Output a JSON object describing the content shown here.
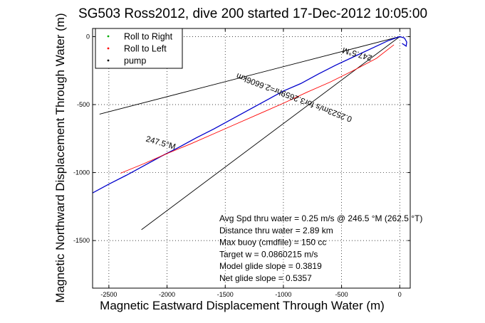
{
  "chart_data": {
    "type": "line",
    "title": "SG503 Ross2012, dive 200 started 17-Dec-2012 10:05:00",
    "xlabel": "Magnetic Eastward Displacement Through Water (m)",
    "ylabel": "Magnetic Northward Displacement Through Water (m)",
    "xlim": [
      -2640,
      90
    ],
    "ylim": [
      -1850,
      60
    ],
    "xticks": [
      -2500,
      -2000,
      -1500,
      -1000,
      -500,
      0
    ],
    "yticks": [
      -1500,
      -1000,
      -500,
      0
    ],
    "xtick_labels": [
      "-2500",
      "-2000",
      "-1500",
      "-1000",
      "-500",
      "0"
    ],
    "ytick_labels": [
      "-1500",
      "-1000",
      "-500",
      "0"
    ],
    "grid": true,
    "legend_position": "top-left",
    "legend": [
      {
        "label": "Roll to Right",
        "color": "#00aa00",
        "marker": "point"
      },
      {
        "label": "Roll to Left",
        "color": "#ff0000",
        "marker": "point"
      },
      {
        "label": "pump",
        "color": "#000000",
        "marker": "point"
      }
    ],
    "series": [
      {
        "color": "#0000cc",
        "x": [
          -2640,
          -2500,
          -2350,
          -2200,
          -2050,
          -1900,
          -1750,
          -1600,
          -1450,
          -1300,
          -1150,
          -1000,
          -850,
          -700,
          -550,
          -400,
          -250,
          -100,
          0,
          40,
          60,
          55,
          20
        ],
        "y": [
          -1150,
          -1085,
          -1020,
          -950,
          -880,
          -815,
          -745,
          -680,
          -610,
          -540,
          -470,
          -400,
          -345,
          -275,
          -210,
          -150,
          -90,
          -30,
          0,
          -10,
          -40,
          -70,
          -50
        ]
      },
      {
        "color": "#ff0000",
        "x": [
          -2400,
          -2200,
          -2000,
          -1800,
          -1600,
          -1400,
          -1200,
          -1000,
          -800,
          -600,
          -400,
          -200,
          -50
        ],
        "y": [
          -1005,
          -935,
          -860,
          -790,
          -715,
          -640,
          -565,
          -490,
          -410,
          -335,
          -250,
          -160,
          -60
        ]
      }
    ],
    "reference_lines": [
      {
        "x": [
          0,
          -2580
        ],
        "y": [
          0,
          -570
        ],
        "color": "#000000"
      },
      {
        "x": [
          0,
          -2220
        ],
        "y": [
          0,
          -1420
        ],
        "color": "#000000"
      }
    ],
    "annotations": [
      {
        "text": "247.5°M",
        "x": -2060,
        "y": -800,
        "angle": 16
      },
      {
        "text": "247.5°M",
        "x": -360,
        "y": -110,
        "angle": 196
      },
      {
        "text": "0.2523m/s for3.2659hr=2.6606km",
        "x": -900,
        "y": -430,
        "angle": 201
      }
    ],
    "stats_text": [
      "Avg Spd thru water =  0.25 m/s @ 246.5   °M (262.5 °T)",
      "Distance thru water =  2.89 km",
      "Max buoy (cmdfile) = 150 cc",
      "Target w = 0.0860215 m/s",
      "Model glide slope = 0.3819",
      "Net glide slope = 0.5357"
    ]
  }
}
